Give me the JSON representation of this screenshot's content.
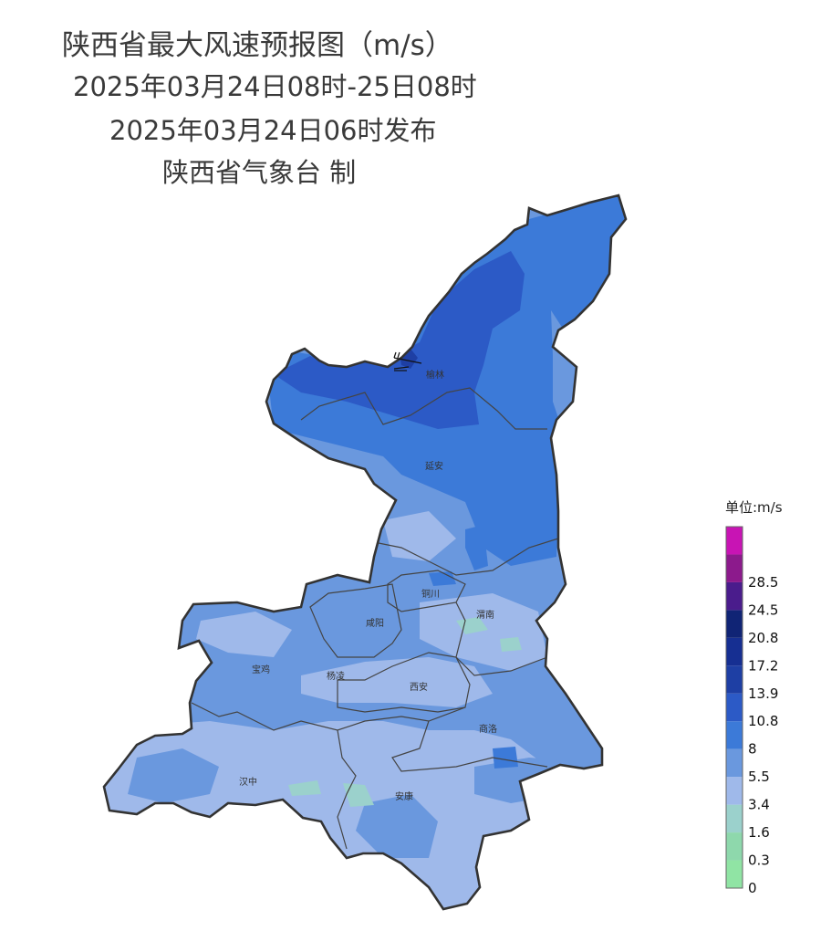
{
  "title": {
    "line1": "陕西省最大风速预报图（m/s）",
    "line2": "2025年03月24日08时-25日08时",
    "line3": "2025年03月24日06时发布",
    "line4": "陕西省气象台 制"
  },
  "cities": [
    "榆林",
    "延安",
    "铜川",
    "渭南",
    "咸阳",
    "宝鸡",
    "杨凌",
    "西安",
    "商洛",
    "汉中",
    "安康"
  ],
  "legend": {
    "unit_label": "单位:m/s",
    "levels": [
      {
        "label": "0",
        "color": "#90e4a4"
      },
      {
        "label": "0.3",
        "color": "#8ed8ac"
      },
      {
        "label": "1.6",
        "color": "#9bd1cc"
      },
      {
        "label": "3.4",
        "color": "#9fb9ea"
      },
      {
        "label": "5.5",
        "color": "#6a98de"
      },
      {
        "label": "8",
        "color": "#3c7ad8"
      },
      {
        "label": "10.8",
        "color": "#2c5ac6"
      },
      {
        "label": "13.9",
        "color": "#1e3fa4"
      },
      {
        "label": "17.2",
        "color": "#162f92"
      },
      {
        "label": "20.8",
        "color": "#102475"
      },
      {
        "label": "24.5",
        "color": "#4a1c8c"
      },
      {
        "label": "28.5",
        "color": "#8c1a8c"
      },
      {
        "label": "",
        "color": "#c814b4"
      }
    ]
  },
  "colors": {
    "boundary": "#333333",
    "deep": "#2c5ac6",
    "mid": "#3c7ad8",
    "light": "#6a98de",
    "pale": "#9fb9ea",
    "mint": "#9bd1cc"
  }
}
